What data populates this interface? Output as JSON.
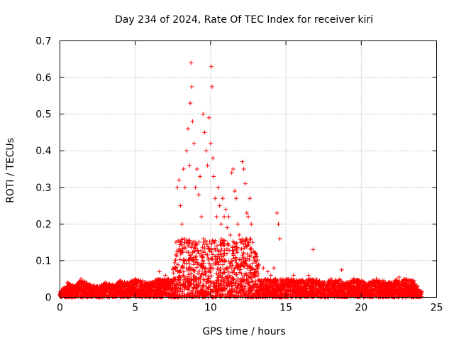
{
  "chart_data": {
    "type": "scatter",
    "title": "Day 234 of 2024, Rate Of TEC Index for receiver kiri",
    "xlabel": "GPS time / hours",
    "ylabel": "ROTI / TECUs",
    "xlim": [
      0,
      25
    ],
    "ylim": [
      0,
      0.7
    ],
    "xticks": [
      "0",
      "5",
      "10",
      "15",
      "20",
      "25"
    ],
    "yticks": [
      "0",
      "0.1",
      "0.2",
      "0.3",
      "0.4",
      "0.5",
      "0.6",
      "0.7"
    ],
    "grid": true,
    "marker": "+",
    "color": "#ff0000",
    "series": [
      {
        "name": "ROTI",
        "note": "dense background band 0-0.05 TECU across 0-24 h; enhanced activity 7.5-13 h",
        "x": [
          0.0,
          0.5,
          1.0,
          1.4,
          2.0,
          2.5,
          3.0,
          3.5,
          4.0,
          4.5,
          5.0,
          5.5,
          6.0,
          6.5,
          6.6,
          7.0,
          7.2,
          7.5,
          7.7,
          7.8,
          7.9,
          8.0,
          8.1,
          8.2,
          8.3,
          8.4,
          8.5,
          8.6,
          8.65,
          8.7,
          8.75,
          8.8,
          8.9,
          9.0,
          9.1,
          9.2,
          9.3,
          9.4,
          9.5,
          9.6,
          9.7,
          9.8,
          9.9,
          10.0,
          10.05,
          10.1,
          10.15,
          10.2,
          10.3,
          10.4,
          10.5,
          10.6,
          10.7,
          10.8,
          10.9,
          11.0,
          11.1,
          11.2,
          11.3,
          11.4,
          11.5,
          11.6,
          11.7,
          11.8,
          11.9,
          12.0,
          12.1,
          12.2,
          12.3,
          12.4,
          12.5,
          12.6,
          12.7,
          12.8,
          13.0,
          13.2,
          13.5,
          13.8,
          14.0,
          14.2,
          14.4,
          14.5,
          14.6,
          15.0,
          15.5,
          16.0,
          16.5,
          16.8,
          17.0,
          17.5,
          18.0,
          18.5,
          18.7,
          19.0,
          19.5,
          20.0,
          20.5,
          21.0,
          21.5,
          22.0,
          22.5,
          23.0,
          23.5,
          24.0
        ],
        "y": [
          0.015,
          0.04,
          0.03,
          0.05,
          0.035,
          0.03,
          0.04,
          0.035,
          0.045,
          0.04,
          0.05,
          0.045,
          0.04,
          0.05,
          0.07,
          0.06,
          0.05,
          0.08,
          0.15,
          0.3,
          0.32,
          0.25,
          0.2,
          0.35,
          0.3,
          0.4,
          0.46,
          0.36,
          0.53,
          0.64,
          0.575,
          0.48,
          0.42,
          0.3,
          0.35,
          0.28,
          0.33,
          0.22,
          0.5,
          0.45,
          0.4,
          0.36,
          0.49,
          0.42,
          0.63,
          0.575,
          0.38,
          0.33,
          0.27,
          0.22,
          0.3,
          0.25,
          0.2,
          0.27,
          0.22,
          0.24,
          0.19,
          0.22,
          0.17,
          0.34,
          0.35,
          0.29,
          0.27,
          0.2,
          0.17,
          0.15,
          0.37,
          0.35,
          0.31,
          0.23,
          0.22,
          0.27,
          0.2,
          0.15,
          0.12,
          0.09,
          0.08,
          0.07,
          0.06,
          0.08,
          0.23,
          0.2,
          0.16,
          0.05,
          0.06,
          0.045,
          0.06,
          0.13,
          0.05,
          0.04,
          0.05,
          0.045,
          0.075,
          0.04,
          0.05,
          0.045,
          0.04,
          0.05,
          0.045,
          0.04,
          0.055,
          0.05,
          0.045,
          0.015
        ]
      }
    ]
  }
}
